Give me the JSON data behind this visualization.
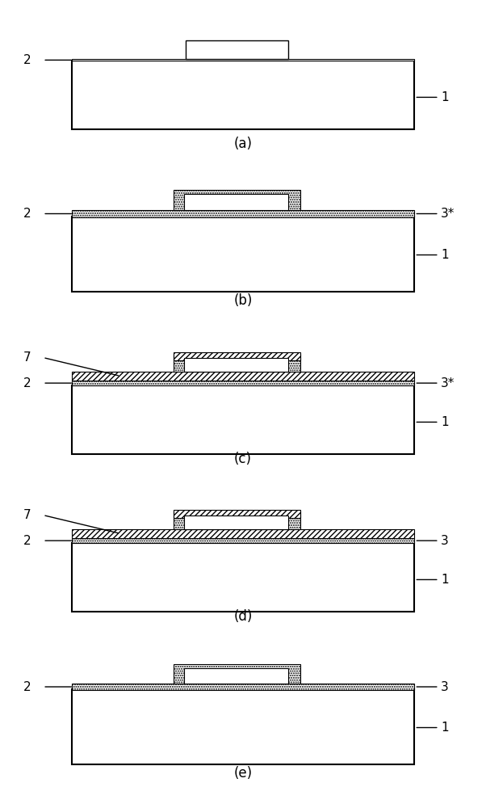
{
  "fig_width": 6.02,
  "fig_height": 10.0,
  "panels": [
    "(a)",
    "(b)",
    "(c)",
    "(d)",
    "(e)"
  ],
  "bg_color": "#ffffff",
  "black": "#000000",
  "white": "#ffffff"
}
